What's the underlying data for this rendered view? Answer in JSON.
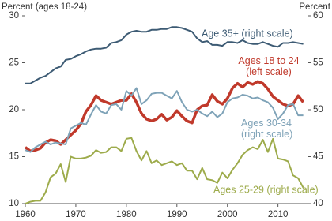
{
  "chart_data": {
    "type": "line",
    "y_label": "Percent (ages 18-24)",
    "y2_label": "Percent",
    "x": [
      1960,
      1961,
      1962,
      1963,
      1964,
      1965,
      1966,
      1967,
      1968,
      1969,
      1970,
      1971,
      1972,
      1973,
      1974,
      1975,
      1976,
      1977,
      1978,
      1979,
      1980,
      1981,
      1982,
      1983,
      1984,
      1985,
      1986,
      1987,
      1988,
      1989,
      1990,
      1991,
      1992,
      1993,
      1994,
      1995,
      1996,
      1997,
      1998,
      1999,
      2000,
      2001,
      2002,
      2003,
      2004,
      2005,
      2006,
      2007,
      2008,
      2009,
      2010,
      2011,
      2012,
      2013,
      2014,
      2015
    ],
    "xlim": [
      1960,
      2016
    ],
    "xticks": [
      1960,
      1970,
      1980,
      1990,
      2000,
      2010
    ],
    "ylim": [
      10,
      30
    ],
    "yticks": [
      10,
      15,
      20,
      25,
      30
    ],
    "y2lim": [
      40,
      60
    ],
    "y2ticks": [
      40,
      45,
      50,
      55,
      60
    ],
    "series": [
      {
        "name": "Age 35+ (right scale)",
        "color": "#3d5b74",
        "axis": "y2",
        "values": [
          52.8,
          52.8,
          53.1,
          53.4,
          53.6,
          54.0,
          54.4,
          54.6,
          55.3,
          55.4,
          55.7,
          55.9,
          56.2,
          56.4,
          56.5,
          56.5,
          56.6,
          57.1,
          57.2,
          57.4,
          58.0,
          58.3,
          58.4,
          58.3,
          58.3,
          58.5,
          58.5,
          58.6,
          58.6,
          58.8,
          58.8,
          58.7,
          58.5,
          58.3,
          57.6,
          57.2,
          57.3,
          56.9,
          56.9,
          56.8,
          57.2,
          57.2,
          57.1,
          57.4,
          57.1,
          57.0,
          57.0,
          57.2,
          57.0,
          56.8,
          56.7,
          57.1,
          57.1,
          57.2,
          57.1,
          57.0
        ]
      },
      {
        "name": "Ages 18 to 24 (left scale)",
        "color": "#c0392b",
        "values": [
          16.0,
          15.6,
          15.7,
          15.9,
          16.5,
          16.8,
          16.7,
          16.3,
          16.8,
          17.3,
          17.8,
          18.5,
          19.8,
          20.5,
          21.5,
          21.0,
          20.8,
          20.6,
          20.8,
          21.0,
          21.0,
          21.7,
          20.8,
          19.6,
          19.0,
          18.8,
          19.0,
          19.5,
          18.9,
          19.2,
          19.9,
          19.3,
          18.8,
          18.6,
          20.0,
          20.4,
          20.5,
          21.6,
          20.9,
          20.6,
          21.2,
          22.3,
          22.8,
          22.4,
          22.9,
          22.7,
          23.0,
          22.8,
          22.2,
          21.4,
          21.0,
          20.6,
          20.4,
          20.6,
          21.5,
          20.8
        ]
      },
      {
        "name": "Ages 30-34 (right scale)",
        "color": "#7fa3b8",
        "axis": "y2",
        "values": [
          45.7,
          45.5,
          46.0,
          46.3,
          46.6,
          46.3,
          46.5,
          46.4,
          46.3,
          48.0,
          48.3,
          48.6,
          48.4,
          49.5,
          50.5,
          49.8,
          49.6,
          50.5,
          50.6,
          50.0,
          52.0,
          51.5,
          52.3,
          50.6,
          51.0,
          51.7,
          51.8,
          51.8,
          51.5,
          51.2,
          52.0,
          50.8,
          50.0,
          49.8,
          50.0,
          49.6,
          49.3,
          49.8,
          49.2,
          49.6,
          50.8,
          51.2,
          51.3,
          51.6,
          51.5,
          51.2,
          51.3,
          51.0,
          50.8,
          50.2,
          49.0,
          49.6,
          50.5,
          50.6,
          49.4,
          49.4
        ]
      },
      {
        "name": "Ages 25-29 (right scale)",
        "color": "#9dab4b",
        "axis": "y2",
        "values": [
          40.0,
          40.2,
          40.3,
          40.3,
          41.2,
          42.8,
          43.2,
          44.2,
          42.3,
          45.0,
          44.8,
          44.8,
          44.9,
          45.1,
          45.7,
          45.4,
          45.5,
          46.0,
          46.0,
          45.6,
          46.9,
          47.0,
          45.6,
          44.6,
          45.6,
          44.3,
          44.6,
          44.1,
          44.3,
          44.5,
          44.1,
          44.3,
          43.5,
          43.5,
          42.6,
          43.8,
          42.6,
          42.5,
          42.2,
          43.3,
          42.7,
          43.6,
          44.3,
          45.2,
          45.7,
          46.0,
          45.8,
          46.8,
          45.5,
          46.9,
          44.8,
          44.7,
          44.5,
          43.0,
          42.7,
          41.7
        ]
      }
    ]
  }
}
